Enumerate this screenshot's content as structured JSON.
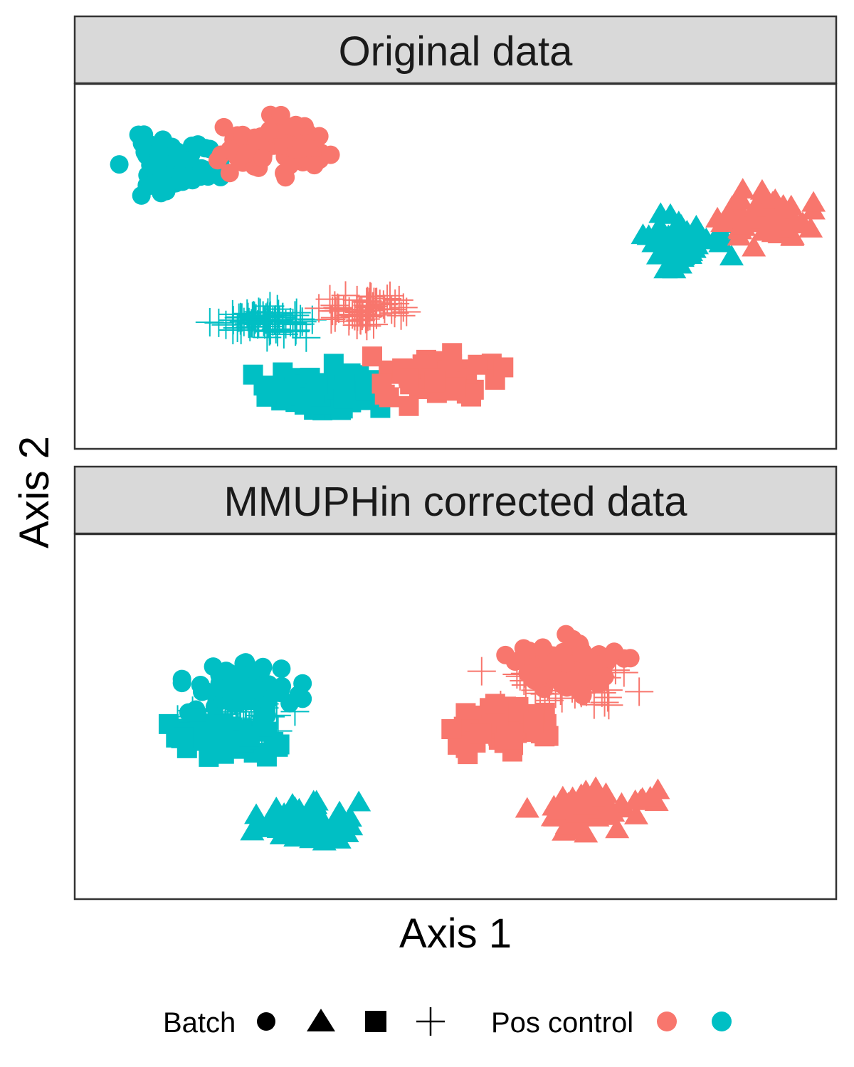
{
  "chart_data": {
    "type": "scatter",
    "xlabel": "Axis 1",
    "ylabel": "Axis 2",
    "xlim": [
      0,
      100
    ],
    "ylim": [
      0,
      100
    ],
    "grid": false,
    "legend_position": "bottom",
    "colors": {
      "pos": "#F8766D",
      "neg": "#00BFC4"
    },
    "legend": {
      "batch_title": "Batch",
      "batch_shapes": [
        "circle",
        "triangle",
        "square",
        "plus"
      ],
      "pos_control_title": "Pos control",
      "pos_control_colors": [
        "#F8766D",
        "#00BFC4"
      ]
    },
    "panels": [
      {
        "title": "Original data",
        "clusters": [
          {
            "batch": "circle",
            "group": "neg",
            "center": [
              13,
              78
            ],
            "spread": [
              5.5,
              6.5
            ],
            "n": 70,
            "seed": 11
          },
          {
            "batch": "circle",
            "group": "pos",
            "center": [
              26,
              83
            ],
            "spread": [
              6.0,
              6.5
            ],
            "n": 70,
            "seed": 12
          },
          {
            "batch": "triangle",
            "group": "neg",
            "center": [
              79,
              57
            ],
            "spread": [
              5.5,
              6.0
            ],
            "n": 65,
            "seed": 13
          },
          {
            "batch": "triangle",
            "group": "pos",
            "center": [
              91,
              63
            ],
            "spread": [
              5.0,
              6.0
            ],
            "n": 65,
            "seed": 14
          },
          {
            "batch": "plus",
            "group": "neg",
            "center": [
              25,
              35
            ],
            "spread": [
              5.5,
              3.5
            ],
            "n": 75,
            "seed": 15
          },
          {
            "batch": "plus",
            "group": "pos",
            "center": [
              38,
              38
            ],
            "spread": [
              5.0,
              4.0
            ],
            "n": 60,
            "seed": 16
          },
          {
            "batch": "square",
            "group": "neg",
            "center": [
              32,
              16
            ],
            "spread": [
              6.5,
              6.5
            ],
            "n": 60,
            "seed": 17
          },
          {
            "batch": "square",
            "group": "pos",
            "center": [
              48,
              19
            ],
            "spread": [
              7.0,
              5.5
            ],
            "n": 60,
            "seed": 18
          }
        ]
      },
      {
        "title": "MMUPHin corrected data",
        "clusters": [
          {
            "batch": "plus",
            "group": "neg",
            "center": [
              21,
              50
            ],
            "spread": [
              6.0,
              5.0
            ],
            "n": 50,
            "seed": 21
          },
          {
            "batch": "circle",
            "group": "neg",
            "center": [
              22,
              58
            ],
            "spread": [
              6.0,
              6.0
            ],
            "n": 85,
            "seed": 22
          },
          {
            "batch": "square",
            "group": "neg",
            "center": [
              19,
              44
            ],
            "spread": [
              6.5,
              5.0
            ],
            "n": 60,
            "seed": 23
          },
          {
            "batch": "triangle",
            "group": "neg",
            "center": [
              30,
              20
            ],
            "spread": [
              6.0,
              5.0
            ],
            "n": 70,
            "seed": 24
          },
          {
            "batch": "plus",
            "group": "pos",
            "center": [
              64,
              58
            ],
            "spread": [
              8.0,
              6.0
            ],
            "n": 50,
            "seed": 25
          },
          {
            "batch": "circle",
            "group": "pos",
            "center": [
              65,
              64
            ],
            "spread": [
              6.5,
              6.5
            ],
            "n": 85,
            "seed": 26
          },
          {
            "batch": "square",
            "group": "pos",
            "center": [
              57,
              47
            ],
            "spread": [
              6.5,
              5.5
            ],
            "n": 60,
            "seed": 27
          },
          {
            "batch": "triangle",
            "group": "pos",
            "center": [
              68,
              24
            ],
            "spread": [
              6.5,
              5.0
            ],
            "n": 70,
            "seed": 28
          }
        ]
      }
    ]
  }
}
